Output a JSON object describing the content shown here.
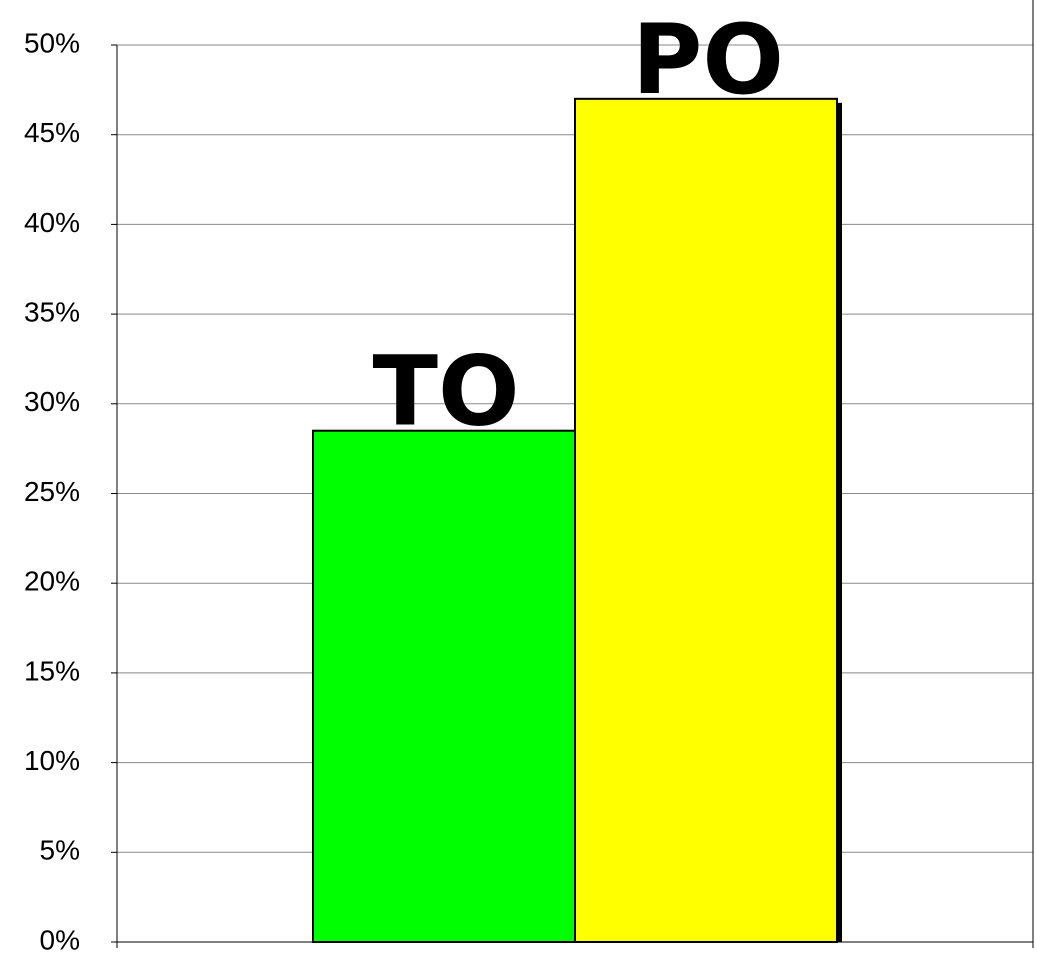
{
  "chart_data": {
    "type": "bar",
    "categories": [
      "TO",
      "PO"
    ],
    "values": [
      28.5,
      47
    ],
    "colors": [
      "#00ff00",
      "#ffff00"
    ],
    "ylim": [
      0,
      50
    ],
    "yticks": [
      {
        "value": 0,
        "label": "0%"
      },
      {
        "value": 5,
        "label": "5%"
      },
      {
        "value": 10,
        "label": "10%"
      },
      {
        "value": 15,
        "label": "15%"
      },
      {
        "value": 20,
        "label": "20%"
      },
      {
        "value": 25,
        "label": "25%"
      },
      {
        "value": 30,
        "label": "30%"
      },
      {
        "value": 35,
        "label": "35%"
      },
      {
        "value": 40,
        "label": "40%"
      },
      {
        "value": 45,
        "label": "45%"
      },
      {
        "value": 50,
        "label": "50%"
      }
    ],
    "grid": true
  }
}
